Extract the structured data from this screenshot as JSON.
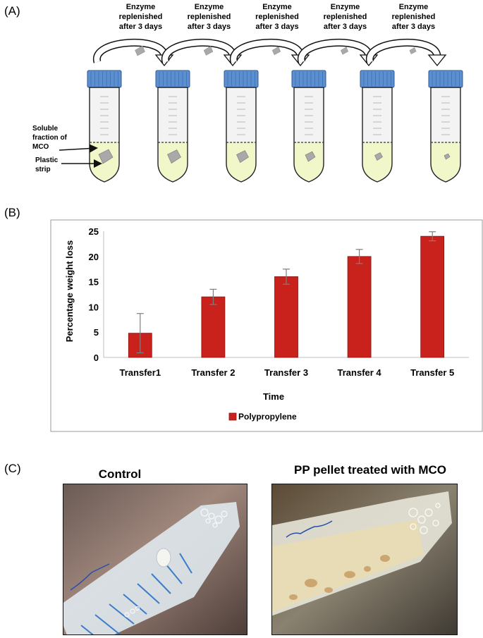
{
  "panel_a": {
    "label": "(A)",
    "step_text_line1": "Enzyme",
    "step_text_line2": "replenished",
    "step_text_line3": "after 3 days",
    "annotation_soluble_line1": "Soluble",
    "annotation_soluble_line2": "fraction of",
    "annotation_soluble_line3": "MCO",
    "annotation_plastic_line1": "Plastic",
    "annotation_plastic_line2": "strip",
    "tube_count": 6,
    "transfer_count": 5,
    "colors": {
      "cap": "#5b8fd0",
      "liquid": "#f2f7c9",
      "strip": "#a9a9a9",
      "tube": "#f3f3f3"
    }
  },
  "panel_b": {
    "label": "(B)",
    "legend_label": "Polypropylene",
    "colors": {
      "bar": "#c9211b",
      "error": "#7f7f7f"
    }
  },
  "chart_data": {
    "type": "bar",
    "categories": [
      "Transfer1",
      "Transfer 2",
      "Transfer 3",
      "Transfer 4",
      "Transfer 5"
    ],
    "series": [
      {
        "name": "Polypropylene",
        "values": [
          4.8,
          12.0,
          16.0,
          20.0,
          24.0
        ],
        "errors": [
          3.9,
          1.5,
          1.5,
          1.4,
          0.9
        ]
      }
    ],
    "xlabel": "Time",
    "ylabel": "Percentage weight loss",
    "ylim": [
      0,
      25
    ],
    "yticks": [
      0,
      5,
      10,
      15,
      20,
      25
    ],
    "grid": false,
    "legend_position": "bottom"
  },
  "panel_c": {
    "label": "(C)",
    "left_title": "Control",
    "right_title": "PP pellet treated with MCO"
  }
}
